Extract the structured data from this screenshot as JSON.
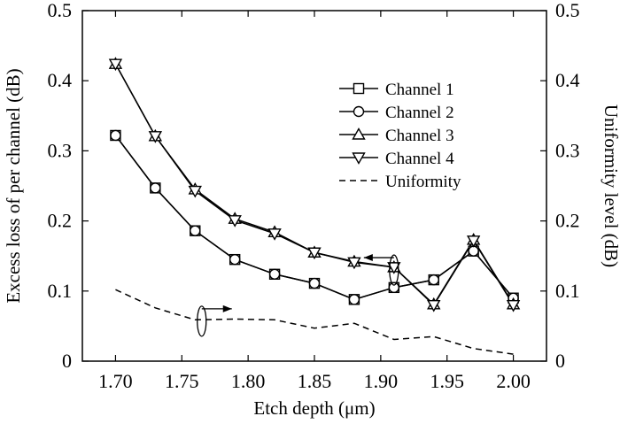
{
  "chart_data": {
    "type": "line",
    "title": "",
    "xlabel": "Etch depth (μm)",
    "ylabel": "Excess loss of per channel (dB)",
    "y2label": "Uniformity level (dB)",
    "xlim": [
      1.675,
      2.025
    ],
    "ylim": [
      0,
      0.5
    ],
    "y2lim": [
      0,
      0.5
    ],
    "xticks": [
      "1.70",
      "1.75",
      "1.80",
      "1.85",
      "1.90",
      "1.95",
      "2.00"
    ],
    "yticks": [
      "0",
      "0.1",
      "0.2",
      "0.3",
      "0.4",
      "0.5"
    ],
    "y2ticks": [
      "0",
      "0.1",
      "0.2",
      "0.3",
      "0.4",
      "0.5"
    ],
    "grid": false,
    "legend_position": "top-right",
    "x": [
      1.7,
      1.73,
      1.76,
      1.79,
      1.82,
      1.85,
      1.88,
      1.91,
      1.94,
      1.97,
      2.0
    ],
    "series": [
      {
        "name": "Channel 1",
        "marker": "square",
        "axis": "left",
        "style": "solid",
        "values": [
          0.322,
          0.247,
          0.186,
          0.145,
          0.124,
          0.111,
          0.088,
          0.105,
          0.116,
          0.157,
          0.09
        ]
      },
      {
        "name": "Channel 2",
        "marker": "circle",
        "axis": "left",
        "style": "solid",
        "values": [
          0.322,
          0.247,
          0.186,
          0.145,
          0.124,
          0.111,
          0.088,
          0.105,
          0.116,
          0.157,
          0.09
        ]
      },
      {
        "name": "Channel 3",
        "marker": "triangle-up",
        "axis": "left",
        "style": "solid",
        "values": [
          0.424,
          0.321,
          0.245,
          0.203,
          0.184,
          0.155,
          0.142,
          0.134,
          0.081,
          0.173,
          0.081
        ]
      },
      {
        "name": "Channel 4",
        "marker": "triangle-down",
        "axis": "left",
        "style": "solid",
        "values": [
          0.424,
          0.321,
          0.243,
          0.201,
          0.182,
          0.155,
          0.141,
          0.134,
          0.08,
          0.172,
          0.08
        ]
      },
      {
        "name": "Uniformity",
        "marker": "none",
        "axis": "right",
        "style": "dashed",
        "values": [
          0.102,
          0.076,
          0.059,
          0.06,
          0.059,
          0.047,
          0.054,
          0.031,
          0.035,
          0.018,
          0.01
        ]
      }
    ],
    "annotations": [
      {
        "type": "axis-arrow",
        "target_axis": "left",
        "series_group": "Channel 1-4",
        "at": [
          1.91,
          0.13
        ]
      },
      {
        "type": "axis-arrow",
        "target_axis": "right",
        "series_group": "Uniformity",
        "at": [
          1.765,
          0.057
        ]
      }
    ]
  }
}
